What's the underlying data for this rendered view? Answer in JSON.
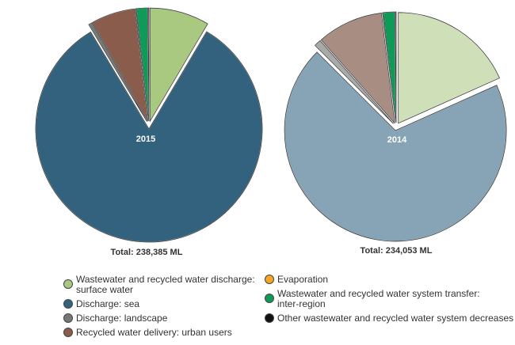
{
  "chart_data": [
    {
      "type": "pie",
      "center_label": "2015",
      "total_label": "Total: 238,385 ML",
      "slices": [
        {
          "name": "Wastewater and recycled water discharge: surface water",
          "value": 8.5,
          "color": "#a9c880",
          "exploded": true
        },
        {
          "name": "Discharge: sea",
          "value": 82.9,
          "color": "#33627e",
          "exploded": true
        },
        {
          "name": "Discharge: landscape",
          "value": 0.5,
          "color": "#777777",
          "exploded": true
        },
        {
          "name": "Recycled water delivery: urban users",
          "value": 6.3,
          "color": "#8a5c4c",
          "exploded": true
        },
        {
          "name": "Evaporation",
          "value": 0.05,
          "color": "#f5a623",
          "exploded": true
        },
        {
          "name": "Wastewater and recycled water system transfer: inter-region",
          "value": 1.6,
          "color": "#0f9b57",
          "exploded": true
        },
        {
          "name": "Other wastewater and recycled water system decreases",
          "value": 0.15,
          "color": "#111111",
          "exploded": true
        }
      ]
    },
    {
      "type": "pie",
      "center_label": "2014",
      "total_label": "Total: 234,053 ML",
      "slices": [
        {
          "name": "Wastewater and recycled water discharge: surface water",
          "value": 18.3,
          "color": "#cfe0b8",
          "exploded": true
        },
        {
          "name": "Discharge: sea",
          "value": 69.2,
          "color": "#86a4b5",
          "exploded": true
        },
        {
          "name": "Discharge: landscape",
          "value": 1.0,
          "color": "#a9a9a9",
          "exploded": true
        },
        {
          "name": "Recycled water delivery: urban users",
          "value": 9.6,
          "color": "#a88d83",
          "exploded": true
        },
        {
          "name": "Evaporation",
          "value": 0.05,
          "color": "#f5a623",
          "exploded": true
        },
        {
          "name": "Wastewater and recycled water system transfer: inter-region",
          "value": 1.7,
          "color": "#0f9b57",
          "exploded": true
        },
        {
          "name": "Other wastewater and recycled water system decreases",
          "value": 0.15,
          "color": "#111111",
          "exploded": true
        }
      ]
    }
  ],
  "legend": {
    "items": [
      {
        "label": "Wastewater and recycled water discharge: surface water",
        "line1": "Wastewater and recycled water discharge:",
        "line2": "surface water",
        "color": "#a9c880"
      },
      {
        "label": "Discharge: sea",
        "line1": "Discharge: sea",
        "line2": "",
        "color": "#33627e"
      },
      {
        "label": "Discharge: landscape",
        "line1": "Discharge: landscape",
        "line2": "",
        "color": "#777777"
      },
      {
        "label": "Recycled water delivery: urban users",
        "line1": "Recycled water delivery: urban users",
        "line2": "",
        "color": "#8a5c4c"
      },
      {
        "label": "Evaporation",
        "line1": "Evaporation",
        "line2": "",
        "color": "#f5a623"
      },
      {
        "label": "Wastewater and recycled water system transfer: inter-region",
        "line1": "Wastewater and recycled water system transfer:",
        "line2": "inter-region",
        "color": "#0f9b57"
      },
      {
        "label": "Other wastewater and recycled water system decreases",
        "line1": "Other wastewater and recycled water system decreases",
        "line2": "",
        "color": "#111111"
      }
    ]
  }
}
